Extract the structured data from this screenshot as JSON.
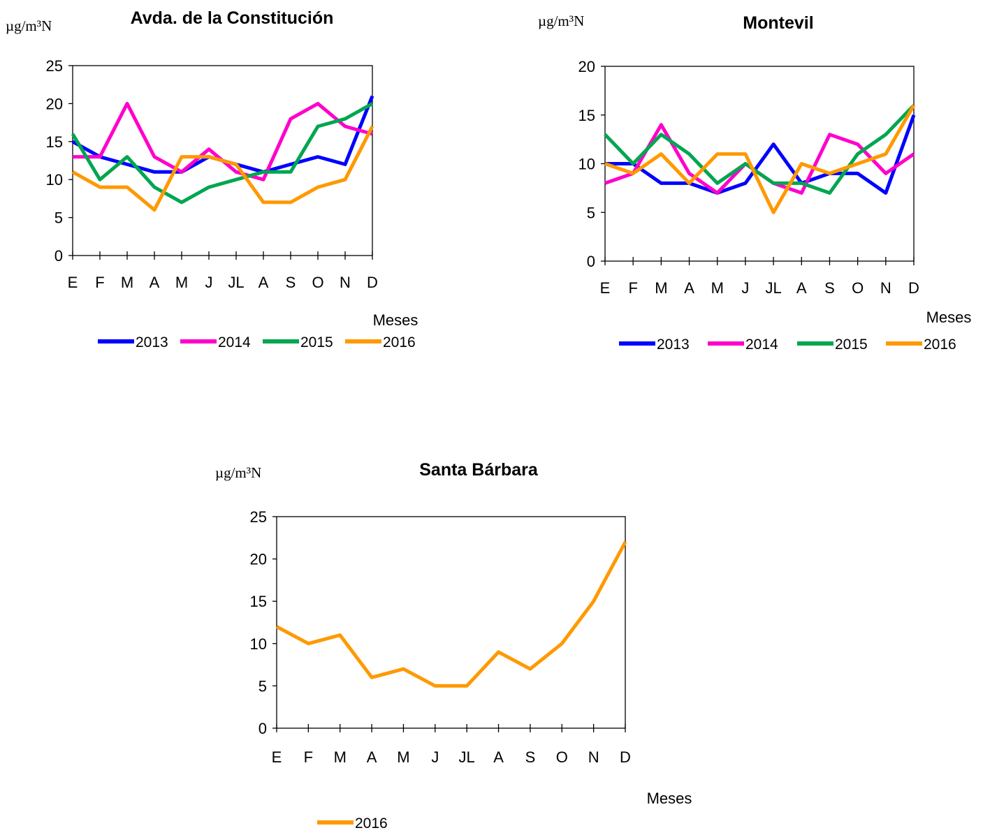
{
  "chart_data": [
    {
      "type": "line",
      "title": "Avda. de la Constitución",
      "unit_label": "µg/m³N",
      "xlabel": "Meses",
      "categories": [
        "E",
        "F",
        "M",
        "A",
        "M",
        "J",
        "JL",
        "A",
        "S",
        "O",
        "N",
        "D"
      ],
      "ylim": [
        0,
        25
      ],
      "yticks": [
        0,
        5,
        10,
        15,
        20,
        25
      ],
      "grid": false,
      "legend_position": "bottom",
      "series": [
        {
          "name": "2013",
          "color": "#0000ff",
          "values": [
            15,
            13,
            12,
            11,
            11,
            13,
            12,
            11,
            12,
            13,
            12,
            21
          ]
        },
        {
          "name": "2014",
          "color": "#ff00cc",
          "values": [
            13,
            13,
            20,
            13,
            11,
            14,
            11,
            10,
            18,
            20,
            17,
            16
          ]
        },
        {
          "name": "2015",
          "color": "#00a650",
          "values": [
            16,
            10,
            13,
            9,
            7,
            9,
            10,
            11,
            11,
            17,
            18,
            20
          ]
        },
        {
          "name": "2016",
          "color": "#ff9900",
          "values": [
            11,
            9,
            9,
            6,
            13,
            13,
            12,
            7,
            7,
            9,
            10,
            17
          ]
        }
      ]
    },
    {
      "type": "line",
      "title": "Montevil",
      "unit_label": "µg/m³N",
      "xlabel": "Meses",
      "categories": [
        "E",
        "F",
        "M",
        "A",
        "M",
        "J",
        "JL",
        "A",
        "S",
        "O",
        "N",
        "D"
      ],
      "ylim": [
        0,
        20
      ],
      "yticks": [
        0,
        5,
        10,
        15,
        20
      ],
      "grid": false,
      "legend_position": "bottom",
      "series": [
        {
          "name": "2013",
          "color": "#0000ff",
          "values": [
            10,
            10,
            8,
            8,
            7,
            8,
            12,
            8,
            9,
            9,
            7,
            15
          ]
        },
        {
          "name": "2014",
          "color": "#ff00cc",
          "values": [
            8,
            9,
            14,
            9,
            7,
            10,
            8,
            7,
            13,
            12,
            9,
            11
          ]
        },
        {
          "name": "2015",
          "color": "#00a650",
          "values": [
            13,
            10,
            13,
            11,
            8,
            10,
            8,
            8,
            7,
            11,
            13,
            16
          ]
        },
        {
          "name": "2016",
          "color": "#ff9900",
          "values": [
            10,
            9,
            11,
            8,
            11,
            11,
            5,
            10,
            9,
            10,
            11,
            16
          ]
        }
      ]
    },
    {
      "type": "line",
      "title": "Santa Bárbara",
      "unit_label": "µg/m³N",
      "xlabel": "Meses",
      "categories": [
        "E",
        "F",
        "M",
        "A",
        "M",
        "J",
        "JL",
        "A",
        "S",
        "O",
        "N",
        "D"
      ],
      "ylim": [
        0,
        25
      ],
      "yticks": [
        0,
        5,
        10,
        15,
        20,
        25
      ],
      "grid": false,
      "legend_position": "bottom",
      "series": [
        {
          "name": "2016",
          "color": "#ff9900",
          "values": [
            12,
            10,
            11,
            6,
            7,
            5,
            5,
            9,
            7,
            10,
            15,
            22
          ]
        }
      ]
    }
  ]
}
